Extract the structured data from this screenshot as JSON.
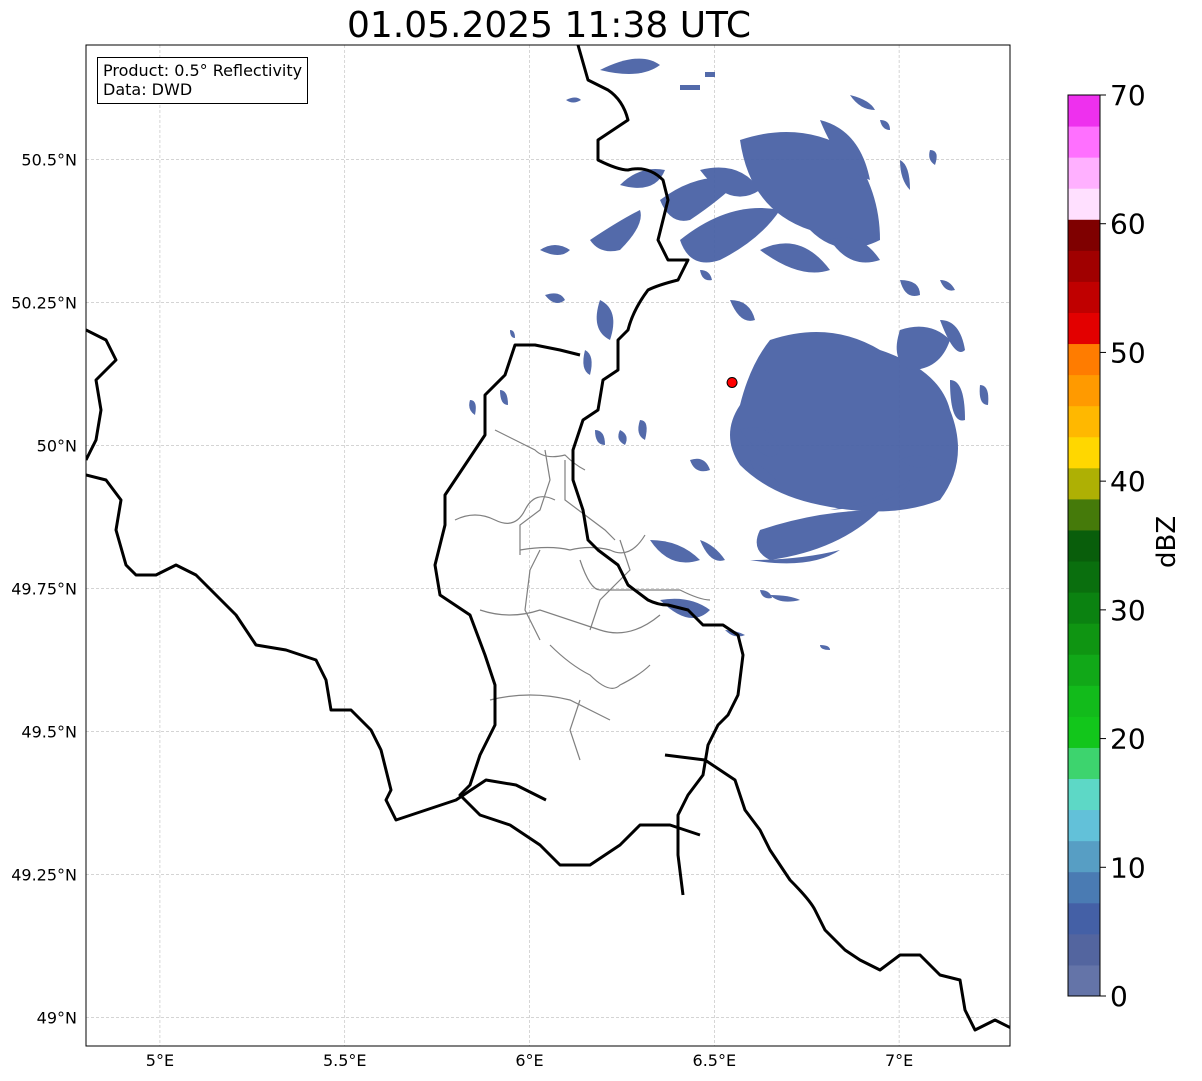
{
  "title": "01.05.2025 11:38 UTC",
  "info": {
    "product": "Product: 0.5° Reflectivity",
    "data": "Data: DWD"
  },
  "map": {
    "lon_range": [
      4.8,
      7.3
    ],
    "lat_range": [
      48.95,
      50.7
    ],
    "lon_ticks": [
      {
        "value": 5.0,
        "label": "5°E"
      },
      {
        "value": 5.5,
        "label": "5.5°E"
      },
      {
        "value": 6.0,
        "label": "6°E"
      },
      {
        "value": 6.5,
        "label": "6.5°E"
      },
      {
        "value": 7.0,
        "label": "7°E"
      }
    ],
    "lat_ticks": [
      {
        "value": 49.0,
        "label": "49°N"
      },
      {
        "value": 49.25,
        "label": "49.25°N"
      },
      {
        "value": 49.5,
        "label": "49.5°N"
      },
      {
        "value": 49.75,
        "label": "49.75°N"
      },
      {
        "value": 50.0,
        "label": "50°N"
      },
      {
        "value": 50.25,
        "label": "50.25°N"
      },
      {
        "value": 50.5,
        "label": "50.5°N"
      }
    ],
    "radar_site": {
      "lon": 6.548,
      "lat": 50.11,
      "color": "#ff0000"
    },
    "echo_color": "#4a63a6",
    "border_color": "#000000",
    "district_color": "#808080"
  },
  "colorbar": {
    "label": "dBZ",
    "min": 0,
    "max": 70,
    "step": 2.5,
    "tick_labels": [
      {
        "value": 0,
        "label": "0"
      },
      {
        "value": 10,
        "label": "10"
      },
      {
        "value": 20,
        "label": "20"
      },
      {
        "value": 30,
        "label": "30"
      },
      {
        "value": 40,
        "label": "40"
      },
      {
        "value": 50,
        "label": "50"
      },
      {
        "value": 60,
        "label": "60"
      },
      {
        "value": 70,
        "label": "70"
      }
    ],
    "colors": [
      "#6474a8",
      "#53659f",
      "#4460a6",
      "#4a7bb3",
      "#579ec4",
      "#62c1d9",
      "#5dd8c6",
      "#3dd46e",
      "#12c61b",
      "#12bb1b",
      "#11a818",
      "#0f9512",
      "#0b8211",
      "#0a6f0e",
      "#095e0b",
      "#457a0a",
      "#aeb004",
      "#ffd700",
      "#ffb800",
      "#ff9a00",
      "#ff7c00",
      "#e30000",
      "#c00000",
      "#a00000",
      "#7f0000",
      "#ffe0ff",
      "#ffb0ff",
      "#ff70ff",
      "#ee30ee"
    ]
  }
}
